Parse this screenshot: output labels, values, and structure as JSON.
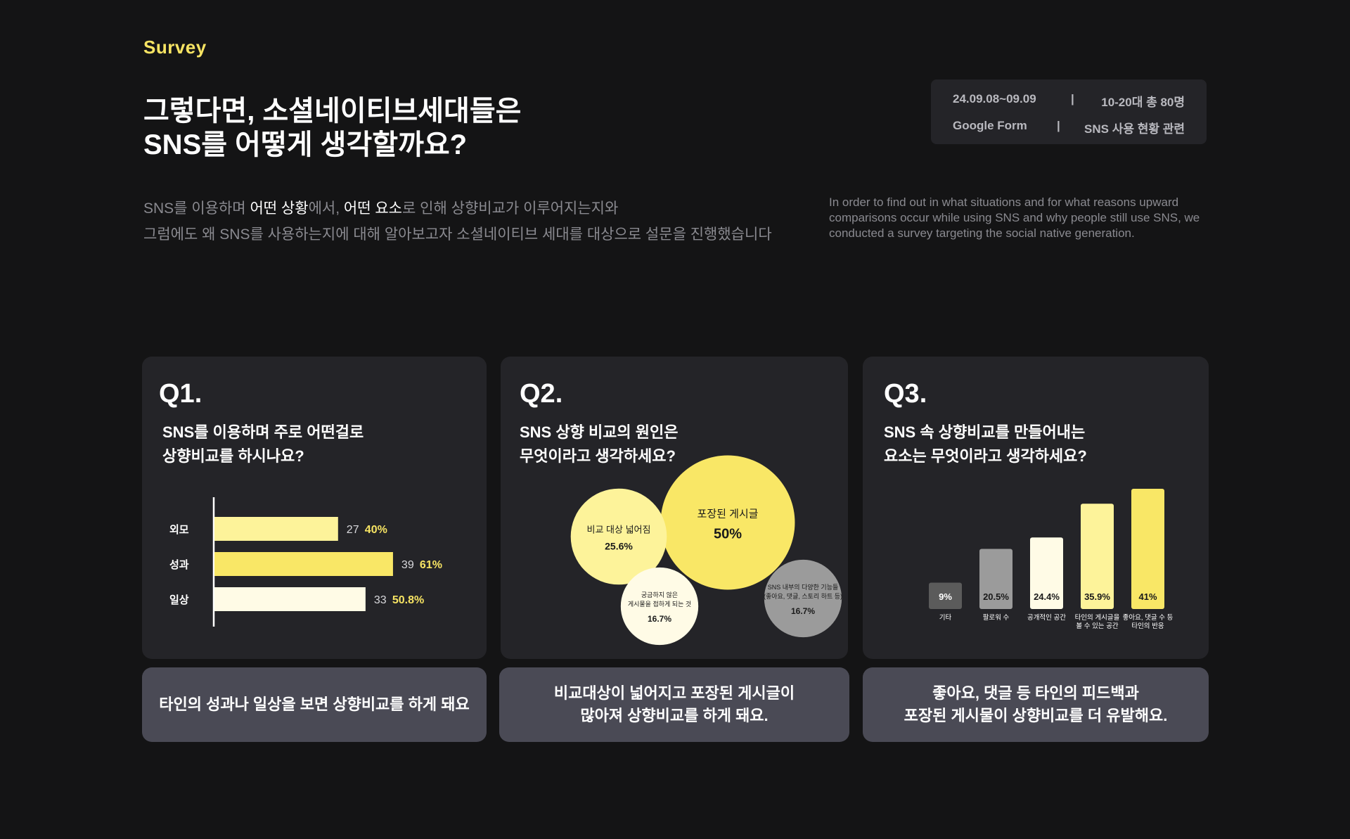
{
  "brand": "Survey",
  "headline": [
    "그렇다면, 소셜네이티브세대들은",
    "SNS를 어떻게 생각할까요?"
  ],
  "meta": {
    "period": "24.09.08~09.09",
    "respondents": "10-20대 총 80명",
    "tool": "Google Form",
    "topic": "SNS 사용 현황 관련",
    "separator": "|"
  },
  "intro_ko": {
    "line1": [
      {
        "text": "SNS를 이용하며 ",
        "highlight": false
      },
      {
        "text": "어떤 상황",
        "highlight": true
      },
      {
        "text": "에서, ",
        "highlight": false
      },
      {
        "text": "어떤 요소",
        "highlight": true
      },
      {
        "text": "로 인해 상향비교가 이루어지는지와",
        "highlight": false
      }
    ],
    "line2": "그럼에도 왜 SNS를 사용하는지에 대해 알아보고자 소셜네이티브 세대를 대상으로 설문을 진행했습니다"
  },
  "intro_en": "In order to find out in what situations and for what reasons upward comparisons occur while using SNS and why people still use SNS, we conducted a survey targeting the social native generation.",
  "colors": {
    "accent": "#f7e463",
    "bright_yellow": "#f9e766",
    "light_yellow": "#fdf39a",
    "cream": "#fffbe6",
    "gray": "#9b9b9b",
    "dark_gray": "#5b5b5b"
  },
  "q1": {
    "number": "Q1.",
    "question": [
      "SNS를 이용하며 주로 어떤걸로",
      "상향비교를 하시나요?"
    ],
    "caption": [
      "타인의 성과나 일상을 보면 상향비교를 하게 돼요"
    ]
  },
  "q2": {
    "number": "Q2.",
    "question": [
      "SNS 상향 비교의 원인은",
      "무엇이라고 생각하세요?"
    ],
    "caption": [
      "비교대상이 넓어지고 포장된 게시글이",
      "많아져 상향비교를 하게 돼요."
    ]
  },
  "q3": {
    "number": "Q3.",
    "question": [
      "SNS 속 상향비교를 만들어내는",
      "요소는 무엇이라고 생각하세요?"
    ],
    "caption": [
      "좋아요, 댓글 등 타인의 피드백과",
      "포장된 게시물이 상향비교를 더 유발해요."
    ]
  },
  "chart_data": [
    {
      "type": "bar",
      "orientation": "horizontal",
      "categories": [
        "외모",
        "성과",
        "일상"
      ],
      "values": [
        27,
        39,
        33
      ],
      "percent_labels": [
        "40%",
        "61%",
        "50.8%"
      ],
      "bar_colors": [
        "#fdf39a",
        "#f9e766",
        "#fffbe6"
      ],
      "title": "",
      "xlabel": "",
      "ylabel": "",
      "xlim": [
        0,
        45
      ],
      "grid": false
    },
    {
      "type": "bubble",
      "bubbles": [
        {
          "label": [
            "포장된 게시글"
          ],
          "value": 50,
          "value_label": "50%",
          "color": "#f9e766"
        },
        {
          "label": [
            "비교 대상 넓어짐"
          ],
          "value": 25.6,
          "value_label": "25.6%",
          "color": "#fdf39a"
        },
        {
          "label": [
            "궁금하지 않은",
            "게시물을 접하게 되는 것"
          ],
          "value": 16.7,
          "value_label": "16.7%",
          "color": "#fffbe6"
        },
        {
          "label": [
            "SNS 내부의 다양한 기능들",
            "(좋아요, 댓글, 스토리 하트 등)"
          ],
          "value": 16.7,
          "value_label": "16.7%",
          "color": "#9b9b9b"
        }
      ],
      "title": "",
      "grid": false
    },
    {
      "type": "bar",
      "orientation": "vertical",
      "categories": [
        [
          "기타"
        ],
        [
          "팔로워 수"
        ],
        [
          "공개적인 공간"
        ],
        [
          "타인의 게시글을",
          "볼 수 있는 공간"
        ],
        [
          "좋아요, 댓글 수 등",
          "타인의 반응"
        ]
      ],
      "values": [
        9,
        20.5,
        24.4,
        35.9,
        41
      ],
      "value_labels": [
        "9%",
        "20.5%",
        "24.4%",
        "35.9%",
        "41%"
      ],
      "bar_colors": [
        "#5b5b5b",
        "#9b9b9b",
        "#fffbe6",
        "#fdf39a",
        "#f9e766"
      ],
      "label_colors": [
        "#ffffff",
        "#1a1a1a",
        "#1a1a1a",
        "#1a1a1a",
        "#1a1a1a"
      ],
      "title": "",
      "xlabel": "",
      "ylabel": "",
      "ylim": [
        0,
        41
      ],
      "grid": false
    }
  ]
}
